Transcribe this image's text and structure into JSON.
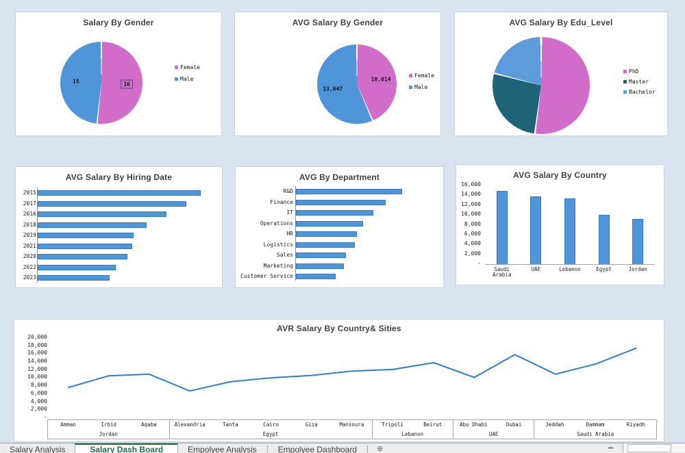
{
  "colors": {
    "page_bg": "#D9E4F1",
    "card_bg": "#FFFFFF",
    "bar_fill": "#4E96D9",
    "bar_border": "#3478BE",
    "line_stroke": "#2E7CD6",
    "pink": "#D16DC8",
    "blue": "#4E95D9",
    "dark_teal": "#1F6378",
    "light_blue": "#5D9BDB",
    "active_tab_green": "#1E7145"
  },
  "chart_data": [
    {
      "id": "salary-by-gender",
      "type": "pie",
      "title": "Salary By Gender",
      "legend_position": "right",
      "slices": [
        {
          "label": "Female",
          "value": 16,
          "data_label": "16",
          "color": "#D16DC8",
          "selected": true
        },
        {
          "label": "Male",
          "value": 15,
          "data_label": "15",
          "color": "#4E95D9",
          "selected": false
        }
      ]
    },
    {
      "id": "avg-salary-by-gender",
      "type": "pie",
      "title": "AVG Salary By Gender",
      "legend_position": "right",
      "slices": [
        {
          "label": "Female",
          "value": 10014,
          "data_label": "10,014",
          "color": "#D16DC8",
          "selected": false
        },
        {
          "label": "Male",
          "value": 13047,
          "data_label": "13,047",
          "color": "#4E95D9",
          "selected": false
        }
      ]
    },
    {
      "id": "avg-salary-by-edu-level",
      "type": "pie",
      "title": "AVG Salary By Edu_Level",
      "legend_position": "right",
      "slices": [
        {
          "label": "PhD",
          "value": 52,
          "color": "#D16DC8",
          "selected": false
        },
        {
          "label": "Master",
          "value": 27,
          "color": "#1F6378",
          "selected": false
        },
        {
          "label": "Bachelor",
          "value": 21,
          "color": "#5D9BDB",
          "selected": false
        }
      ]
    },
    {
      "id": "avg-salary-by-hiring-date",
      "type": "bar",
      "orientation": "horizontal",
      "title": "AVG Salary By Hiring Date",
      "categories": [
        "2015",
        "2017",
        "2016",
        "2018",
        "2019",
        "2021",
        "2020",
        "2022",
        "2023"
      ],
      "values": [
        100,
        91,
        79,
        67,
        59,
        58,
        55,
        48,
        44
      ],
      "xlim": [
        0,
        108
      ]
    },
    {
      "id": "avg-by-department",
      "type": "bar",
      "orientation": "horizontal",
      "title": "AVG By Department",
      "categories": [
        "R&D",
        "Finance",
        "IT",
        "Operations",
        "HR",
        "Logistics",
        "Sales",
        "Marketing",
        "Customer Service"
      ],
      "values": [
        100,
        84,
        73,
        63,
        57,
        55,
        47,
        45,
        37
      ],
      "xlim": [
        0,
        128
      ]
    },
    {
      "id": "avg-salary-by-country",
      "type": "bar",
      "orientation": "vertical",
      "title": "AVG Salary By Country",
      "categories": [
        "Saudi Arabia",
        "UAE",
        "Lebanon",
        "Egypt",
        "Jordan"
      ],
      "values": [
        14800,
        13600,
        13300,
        9900,
        9100
      ],
      "ylim": [
        0,
        16000
      ],
      "yticks": [
        "16,000",
        "14,000",
        "12,000",
        "10,000",
        "8,000",
        "6,000",
        "4,000",
        "2,000",
        "-"
      ]
    },
    {
      "id": "avr-salary-by-country-cities",
      "type": "line",
      "title": "AVR Salary By Country& Sities",
      "x": [
        "Amman",
        "Irbid",
        "Aqaba",
        "Alexandria",
        "Tanta",
        "Cairo",
        "Giza",
        "Mansoura",
        "Tripoli",
        "Beirut",
        "Abu Dhabi",
        "Dubai",
        "Jeddah",
        "Dammam",
        "Riyadh"
      ],
      "groups": [
        {
          "label": "Jordan",
          "span": 3
        },
        {
          "label": "Egypt",
          "span": 5
        },
        {
          "label": "Lebanon",
          "span": 2
        },
        {
          "label": "UAE",
          "span": 2
        },
        {
          "label": "Saudi Arabia",
          "span": 3
        }
      ],
      "values": [
        7400,
        10400,
        10800,
        6600,
        8900,
        9900,
        10500,
        11600,
        12000,
        13700,
        10000,
        15700,
        10800,
        13400,
        17400
      ],
      "ylim": [
        0,
        20000
      ],
      "yticks": [
        "20,000",
        "18,000",
        "16,000",
        "14,000",
        "12,000",
        "10,000",
        "8,000",
        "6,000",
        "4,000",
        "2,000",
        "-"
      ]
    }
  ],
  "tabs": {
    "items": [
      {
        "label": "Salary Analysis",
        "active": false
      },
      {
        "label": "Salary Dash Board",
        "active": true
      },
      {
        "label": "Empolyee Analysis",
        "active": false
      },
      {
        "label": "Empolyee Dashboard",
        "active": false
      }
    ],
    "add_sheet_icon": "⊕"
  }
}
